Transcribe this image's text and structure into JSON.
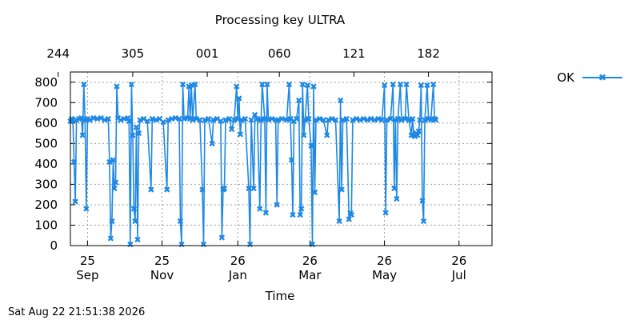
{
  "chart_data": {
    "type": "line",
    "title": "Processing key ULTRA",
    "xlabel": "Time",
    "ylabel": "",
    "ylim": [
      0,
      850
    ],
    "yticks": [
      0,
      100,
      200,
      300,
      400,
      500,
      600,
      700,
      800
    ],
    "xlim": [
      "2025-09-11",
      "2026-08-22"
    ],
    "x_ticks_bottom": [
      {
        "date": "2025-09-25",
        "day": "25",
        "month": "Sep"
      },
      {
        "date": "2025-11-25",
        "day": "25",
        "month": "Nov"
      },
      {
        "date": "2026-01-26",
        "day": "26",
        "month": "Jan"
      },
      {
        "date": "2026-03-26",
        "day": "26",
        "month": "Mar"
      },
      {
        "date": "2026-05-26",
        "day": "26",
        "month": "May"
      },
      {
        "date": "2026-07-26",
        "day": "26",
        "month": "Jul"
      }
    ],
    "x_ticks_top": [
      {
        "date": "2025-09-01",
        "label": "244"
      },
      {
        "date": "2025-11-01",
        "label": "305"
      },
      {
        "date": "2026-01-01",
        "label": "001"
      },
      {
        "date": "2026-03-01",
        "label": "060"
      },
      {
        "date": "2026-05-01",
        "label": "121"
      },
      {
        "date": "2026-07-01",
        "label": "182"
      }
    ],
    "grid": true,
    "legend": "top-right",
    "series": [
      {
        "name": "OK",
        "color": "#1e88e5",
        "points": [
          [
            "2025-09-11",
            610
          ],
          [
            "2025-09-12",
            620
          ],
          [
            "2025-09-13",
            615
          ],
          [
            "2025-09-14",
            410
          ],
          [
            "2025-09-15",
            215
          ],
          [
            "2025-09-16",
            615
          ],
          [
            "2025-09-18",
            620
          ],
          [
            "2025-09-20",
            625
          ],
          [
            "2025-09-21",
            540
          ],
          [
            "2025-09-22",
            790
          ],
          [
            "2025-09-23",
            615
          ],
          [
            "2025-09-24",
            180
          ],
          [
            "2025-09-25",
            620
          ],
          [
            "2025-09-27",
            615
          ],
          [
            "2025-09-30",
            625
          ],
          [
            "2025-10-03",
            620
          ],
          [
            "2025-10-06",
            625
          ],
          [
            "2025-10-09",
            615
          ],
          [
            "2025-10-12",
            620
          ],
          [
            "2025-10-13",
            410
          ],
          [
            "2025-10-14",
            35
          ],
          [
            "2025-10-15",
            120
          ],
          [
            "2025-10-16",
            420
          ],
          [
            "2025-10-17",
            280
          ],
          [
            "2025-10-18",
            310
          ],
          [
            "2025-10-19",
            780
          ],
          [
            "2025-10-20",
            625
          ],
          [
            "2025-10-22",
            615
          ],
          [
            "2025-10-25",
            620
          ],
          [
            "2025-10-28",
            625
          ],
          [
            "2025-10-29",
            610
          ],
          [
            "2025-10-30",
            5
          ],
          [
            "2025-10-31",
            790
          ],
          [
            "2025-11-01",
            540
          ],
          [
            "2025-11-02",
            180
          ],
          [
            "2025-11-03",
            120
          ],
          [
            "2025-11-04",
            580
          ],
          [
            "2025-11-05",
            30
          ],
          [
            "2025-11-06",
            550
          ],
          [
            "2025-11-07",
            615
          ],
          [
            "2025-11-10",
            620
          ],
          [
            "2025-11-13",
            610
          ],
          [
            "2025-11-16",
            275
          ],
          [
            "2025-11-17",
            620
          ],
          [
            "2025-11-20",
            615
          ],
          [
            "2025-11-23",
            620
          ],
          [
            "2025-11-26",
            605
          ],
          [
            "2025-11-29",
            275
          ],
          [
            "2025-11-30",
            615
          ],
          [
            "2025-12-03",
            620
          ],
          [
            "2025-12-06",
            625
          ],
          [
            "2025-12-09",
            620
          ],
          [
            "2025-12-10",
            120
          ],
          [
            "2025-12-11",
            5
          ],
          [
            "2025-12-12",
            790
          ],
          [
            "2025-12-13",
            620
          ],
          [
            "2025-12-16",
            625
          ],
          [
            "2025-12-17",
            780
          ],
          [
            "2025-12-18",
            620
          ],
          [
            "2025-12-19",
            785
          ],
          [
            "2025-12-20",
            615
          ],
          [
            "2025-12-22",
            790
          ],
          [
            "2025-12-23",
            620
          ],
          [
            "2025-12-26",
            615
          ],
          [
            "2025-12-28",
            275
          ],
          [
            "2025-12-29",
            5
          ],
          [
            "2025-12-30",
            615
          ],
          [
            "2026-01-02",
            620
          ],
          [
            "2026-01-05",
            500
          ],
          [
            "2026-01-06",
            615
          ],
          [
            "2026-01-09",
            620
          ],
          [
            "2026-01-12",
            610
          ],
          [
            "2026-01-13",
            40
          ],
          [
            "2026-01-14",
            275
          ],
          [
            "2026-01-15",
            280
          ],
          [
            "2026-01-16",
            615
          ],
          [
            "2026-01-19",
            620
          ],
          [
            "2026-01-21",
            570
          ],
          [
            "2026-01-23",
            615
          ],
          [
            "2026-01-25",
            780
          ],
          [
            "2026-01-26",
            620
          ],
          [
            "2026-01-27",
            720
          ],
          [
            "2026-01-28",
            545
          ],
          [
            "2026-01-29",
            615
          ],
          [
            "2026-02-01",
            620
          ],
          [
            "2026-02-04",
            280
          ],
          [
            "2026-02-05",
            5
          ],
          [
            "2026-02-06",
            615
          ],
          [
            "2026-02-08",
            280
          ],
          [
            "2026-02-09",
            640
          ],
          [
            "2026-02-11",
            620
          ],
          [
            "2026-02-13",
            180
          ],
          [
            "2026-02-14",
            615
          ],
          [
            "2026-02-15",
            790
          ],
          [
            "2026-02-17",
            620
          ],
          [
            "2026-02-18",
            160
          ],
          [
            "2026-02-19",
            790
          ],
          [
            "2026-02-20",
            615
          ],
          [
            "2026-02-23",
            620
          ],
          [
            "2026-02-26",
            615
          ],
          [
            "2026-02-27",
            200
          ],
          [
            "2026-02-28",
            615
          ],
          [
            "2026-03-03",
            620
          ],
          [
            "2026-03-07",
            615
          ],
          [
            "2026-03-09",
            790
          ],
          [
            "2026-03-10",
            620
          ],
          [
            "2026-03-11",
            420
          ],
          [
            "2026-03-12",
            150
          ],
          [
            "2026-03-13",
            610
          ],
          [
            "2026-03-15",
            620
          ],
          [
            "2026-03-17",
            710
          ],
          [
            "2026-03-18",
            150
          ],
          [
            "2026-03-19",
            180
          ],
          [
            "2026-03-20",
            790
          ],
          [
            "2026-03-21",
            540
          ],
          [
            "2026-03-22",
            615
          ],
          [
            "2026-03-24",
            785
          ],
          [
            "2026-03-25",
            620
          ],
          [
            "2026-03-27",
            490
          ],
          [
            "2026-03-28",
            5
          ],
          [
            "2026-03-29",
            780
          ],
          [
            "2026-03-30",
            260
          ],
          [
            "2026-03-31",
            615
          ],
          [
            "2026-04-03",
            620
          ],
          [
            "2026-04-06",
            615
          ],
          [
            "2026-04-09",
            540
          ],
          [
            "2026-04-10",
            615
          ],
          [
            "2026-04-13",
            620
          ],
          [
            "2026-04-16",
            615
          ],
          [
            "2026-04-19",
            120
          ],
          [
            "2026-04-20",
            710
          ],
          [
            "2026-04-21",
            275
          ],
          [
            "2026-04-22",
            615
          ],
          [
            "2026-04-25",
            620
          ],
          [
            "2026-04-27",
            130
          ],
          [
            "2026-04-28",
            160
          ],
          [
            "2026-04-29",
            150
          ],
          [
            "2026-04-30",
            615
          ],
          [
            "2026-05-03",
            620
          ],
          [
            "2026-05-06",
            615
          ],
          [
            "2026-05-09",
            620
          ],
          [
            "2026-05-12",
            615
          ],
          [
            "2026-05-15",
            620
          ],
          [
            "2026-05-18",
            615
          ],
          [
            "2026-05-21",
            620
          ],
          [
            "2026-05-24",
            615
          ],
          [
            "2026-05-26",
            785
          ],
          [
            "2026-05-27",
            160
          ],
          [
            "2026-05-28",
            615
          ],
          [
            "2026-05-31",
            620
          ],
          [
            "2026-06-02",
            790
          ],
          [
            "2026-06-03",
            280
          ],
          [
            "2026-06-04",
            615
          ],
          [
            "2026-06-05",
            230
          ],
          [
            "2026-06-06",
            620
          ],
          [
            "2026-06-08",
            790
          ],
          [
            "2026-06-09",
            615
          ],
          [
            "2026-06-12",
            620
          ],
          [
            "2026-06-13",
            790
          ],
          [
            "2026-06-15",
            615
          ],
          [
            "2026-06-17",
            540
          ],
          [
            "2026-06-18",
            620
          ],
          [
            "2026-06-19",
            540
          ],
          [
            "2026-06-20",
            535
          ],
          [
            "2026-06-21",
            550
          ],
          [
            "2026-06-22",
            540
          ],
          [
            "2026-06-23",
            560
          ],
          [
            "2026-06-24",
            615
          ],
          [
            "2026-06-25",
            785
          ],
          [
            "2026-06-26",
            220
          ],
          [
            "2026-06-27",
            120
          ],
          [
            "2026-06-28",
            615
          ],
          [
            "2026-06-30",
            785
          ],
          [
            "2026-07-01",
            620
          ],
          [
            "2026-07-03",
            615
          ],
          [
            "2026-07-05",
            790
          ],
          [
            "2026-07-06",
            620
          ],
          [
            "2026-07-07",
            615
          ]
        ]
      }
    ]
  },
  "footer": {
    "timestamp": "Sat Aug 22 21:51:38 2026"
  }
}
